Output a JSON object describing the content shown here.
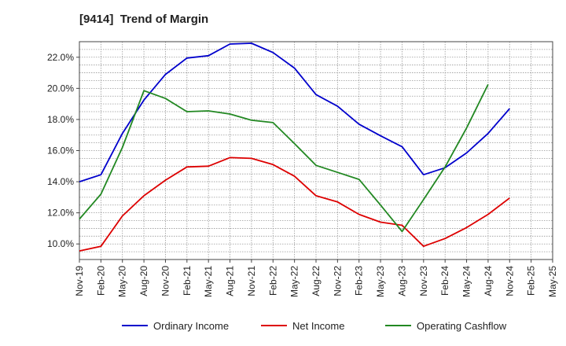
{
  "chart_data": {
    "type": "line",
    "title": "[9414]  Trend of Margin",
    "xlabel": "",
    "ylabel": "",
    "categories": [
      "Nov-19",
      "Feb-20",
      "May-20",
      "Aug-20",
      "Nov-20",
      "Feb-21",
      "May-21",
      "Aug-21",
      "Nov-21",
      "Feb-22",
      "May-22",
      "Aug-22",
      "Nov-22",
      "Feb-23",
      "May-23",
      "Aug-23",
      "Nov-23",
      "Feb-24",
      "May-24",
      "Aug-24",
      "Nov-24",
      "Feb-25",
      "May-25"
    ],
    "ylim": [
      9.0,
      23.0
    ],
    "yticks": [
      10,
      12,
      14,
      16,
      18,
      20,
      22
    ],
    "ytick_labels": [
      "10.0%",
      "12.0%",
      "14.0%",
      "16.0%",
      "18.0%",
      "20.0%",
      "22.0%"
    ],
    "grid": true,
    "legend_position": "bottom",
    "series": [
      {
        "name": "Ordinary Income",
        "color": "#0000cc",
        "values": [
          14.0,
          14.45,
          17.1,
          19.25,
          20.9,
          21.95,
          22.1,
          22.85,
          22.9,
          22.3,
          21.3,
          19.6,
          18.85,
          17.7,
          16.95,
          16.25,
          14.45,
          14.9,
          15.85,
          17.1,
          18.7,
          null,
          null
        ]
      },
      {
        "name": "Net Income",
        "color": "#dd0000",
        "values": [
          9.55,
          9.85,
          11.8,
          13.1,
          14.1,
          14.95,
          15.0,
          15.55,
          15.5,
          15.1,
          14.35,
          13.1,
          12.7,
          11.9,
          11.4,
          11.2,
          9.85,
          10.35,
          11.05,
          11.9,
          12.95,
          null,
          null
        ]
      },
      {
        "name": "Operating Cashflow",
        "color": "#228822",
        "values": [
          11.6,
          13.2,
          16.2,
          19.85,
          19.35,
          18.5,
          18.55,
          18.35,
          17.95,
          17.8,
          16.45,
          15.05,
          14.6,
          14.15,
          12.5,
          10.8,
          12.85,
          14.95,
          17.45,
          20.25,
          null,
          null,
          null
        ]
      }
    ]
  }
}
